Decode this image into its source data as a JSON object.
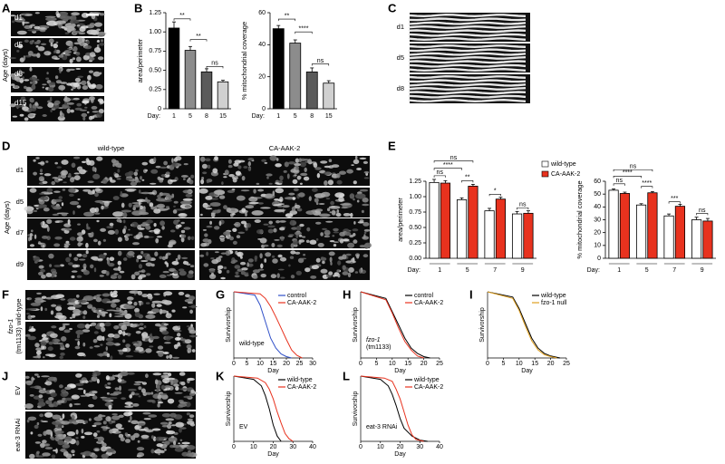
{
  "panel_labels": [
    "A",
    "B",
    "C",
    "D",
    "E",
    "F",
    "G",
    "H",
    "I",
    "J",
    "K",
    "L"
  ],
  "images": {
    "A": {
      "axis_label": "Age (days)",
      "rows": [
        "d1",
        "d5",
        "d8",
        "d15"
      ]
    },
    "C": {
      "rows": [
        "d1",
        "d5",
        "d8"
      ]
    },
    "D": {
      "axis_label": "Age (days)",
      "columns": [
        "wild-type",
        "CA-AAK-2"
      ],
      "rows": [
        "d1",
        "d5",
        "d7",
        "d9"
      ]
    },
    "F": {
      "side_labels": [
        "fzo-1",
        "(tm1133) wild-type"
      ]
    },
    "J": {
      "rows": [
        "EV",
        "eat-3 RNAi"
      ]
    }
  },
  "chart_data": [
    {
      "type": "bar",
      "y_label": "area/perimeter",
      "x_label": "Day:",
      "categories": [
        "1",
        "5",
        "8",
        "15"
      ],
      "values": [
        1.05,
        0.76,
        0.48,
        0.35
      ],
      "errors": [
        0.08,
        0.05,
        0.04,
        0.02
      ],
      "colors": [
        "#000000",
        "#8c8c8c",
        "#5a5a5a",
        "#d0d0d0"
      ],
      "ylim": [
        0,
        1.25
      ],
      "yticks": [
        0,
        0.25,
        {
          "value": 0.5,
          "label": "0.50"
        },
        0.75,
        {
          "value": 1,
          "label": "1.00"
        },
        1.25
      ],
      "annotations": [
        "**",
        "**",
        "ns"
      ]
    },
    {
      "type": "bar",
      "y_label": "% mitochondrial coverage",
      "x_label": "Day:",
      "categories": [
        "1",
        "5",
        "8",
        "15"
      ],
      "values": [
        50,
        41,
        23,
        16
      ],
      "errors": [
        2,
        2,
        2.5,
        1.5
      ],
      "colors": [
        "#000000",
        "#8c8c8c",
        "#5a5a5a",
        "#d0d0d0"
      ],
      "ylim": [
        0,
        60
      ],
      "yticks": [
        0,
        20,
        40,
        60
      ],
      "annotations": [
        "**",
        "****",
        "ns"
      ]
    },
    {
      "type": "bar",
      "y_label": "area/perimeter",
      "x_label": "Day:",
      "categories": [
        "1",
        "5",
        "7",
        "9"
      ],
      "series": [
        {
          "name": "wild-type",
          "color": "#ffffff",
          "values": [
            1.23,
            0.95,
            0.77,
            0.72
          ],
          "errors": [
            0.05,
            0.03,
            0.04,
            0.04
          ]
        },
        {
          "name": "CA-AAK-2",
          "color": "#e8321e",
          "values": [
            1.22,
            1.17,
            0.96,
            0.73
          ],
          "errors": [
            0.04,
            0.03,
            0.03,
            0.04
          ]
        }
      ],
      "ylim": [
        0,
        1.25
      ],
      "yticks": [
        {
          "value": 0,
          "label": "0.00"
        },
        0.25,
        {
          "value": 0.5,
          "label": "0.50"
        },
        0.75,
        {
          "value": 1,
          "label": "1.00"
        },
        1.25
      ],
      "annotations": [
        "ns",
        "****",
        "ns",
        "**",
        "*",
        "ns"
      ]
    },
    {
      "type": "bar",
      "y_label": "% mitochondrial coverage",
      "x_label": "Day:",
      "categories": [
        "1",
        "5",
        "7",
        "9"
      ],
      "series": [
        {
          "color": "#ffffff",
          "values": [
            53,
            41.5,
            33,
            30
          ],
          "errors": [
            1,
            1,
            1.5,
            2
          ]
        },
        {
          "color": "#e8321e",
          "values": [
            50.5,
            51,
            40.5,
            29
          ],
          "errors": [
            1,
            1,
            1.5,
            2
          ]
        }
      ],
      "ylim": [
        0,
        60
      ],
      "yticks": [
        0,
        10,
        20,
        30,
        40,
        50,
        60
      ],
      "annotations": [
        "ns",
        "****",
        "ns",
        "****",
        "***",
        "ns"
      ]
    },
    {
      "type": "line",
      "y_label": "Survivorship",
      "x_label": "Day",
      "annotations": [
        "wild-type"
      ],
      "series": [
        {
          "name": "control",
          "color": "#3050c8",
          "x": [
            0,
            8,
            10,
            12,
            14,
            16,
            18,
            20,
            22
          ],
          "values": [
            1,
            0.95,
            0.8,
            0.55,
            0.3,
            0.15,
            0.06,
            0.02,
            0
          ]
        },
        {
          "name": "CA-AAK-2",
          "color": "#e8321e",
          "x": [
            0,
            10,
            12,
            14,
            16,
            18,
            20,
            22,
            24,
            26
          ],
          "values": [
            1,
            0.97,
            0.9,
            0.78,
            0.62,
            0.45,
            0.28,
            0.12,
            0.04,
            0
          ]
        }
      ],
      "xlim": [
        0,
        30
      ],
      "xticks": [
        0,
        5,
        10,
        15,
        20,
        25,
        30
      ],
      "ylim": [
        0,
        1
      ]
    },
    {
      "type": "line",
      "y_label": "Survivorship",
      "x_label": "Day",
      "annotations": [
        "fzo-1",
        "(tm1133)"
      ],
      "series": [
        {
          "name": "control",
          "color": "#000000",
          "x": [
            0,
            8,
            10,
            12,
            14,
            16,
            18,
            20,
            22
          ],
          "values": [
            1,
            0.9,
            0.7,
            0.5,
            0.3,
            0.15,
            0.07,
            0.02,
            0
          ]
        },
        {
          "name": "CA-AAK-2",
          "color": "#e8321e",
          "x": [
            0,
            8,
            10,
            12,
            14,
            16,
            18,
            20
          ],
          "values": [
            1,
            0.88,
            0.68,
            0.45,
            0.25,
            0.12,
            0.03,
            0
          ]
        }
      ],
      "xlim": [
        0,
        25
      ],
      "xticks": [
        0,
        5,
        10,
        15,
        20,
        25
      ],
      "ylim": [
        0,
        1
      ]
    },
    {
      "type": "line",
      "y_label": "Survivorship",
      "x_label": "Day",
      "series": [
        {
          "name": "wild-type",
          "color": "#000000",
          "x": [
            0,
            8,
            10,
            12,
            14,
            16,
            18,
            20,
            23
          ],
          "values": [
            1,
            0.92,
            0.75,
            0.52,
            0.3,
            0.15,
            0.07,
            0.03,
            0
          ]
        },
        {
          "name": "fzo-1 null",
          "color": "#e0a020",
          "x": [
            0,
            8,
            10,
            12,
            14,
            16,
            18,
            20,
            22
          ],
          "values": [
            1,
            0.9,
            0.72,
            0.48,
            0.26,
            0.12,
            0.05,
            0.02,
            0
          ]
        }
      ],
      "xlim": [
        0,
        25
      ],
      "xticks": [
        0,
        5,
        10,
        15,
        20,
        25
      ],
      "ylim": [
        0,
        1
      ]
    },
    {
      "type": "line",
      "y_label": "Survivorship",
      "x_label": "Day",
      "annotations": [
        "EV"
      ],
      "series": [
        {
          "name": "wild-type",
          "color": "#000000",
          "x": [
            0,
            10,
            14,
            16,
            18,
            20,
            22,
            24
          ],
          "values": [
            1,
            0.95,
            0.85,
            0.7,
            0.5,
            0.25,
            0.08,
            0
          ]
        },
        {
          "name": "CA-AAK-2",
          "color": "#e8321e",
          "x": [
            0,
            12,
            16,
            18,
            20,
            22,
            24,
            26,
            28,
            30
          ],
          "values": [
            1,
            0.97,
            0.9,
            0.8,
            0.65,
            0.45,
            0.28,
            0.12,
            0.04,
            0
          ]
        }
      ],
      "xlim": [
        0,
        40
      ],
      "xticks": [
        0,
        10,
        20,
        30,
        40
      ],
      "ylim": [
        0,
        1
      ]
    },
    {
      "type": "line",
      "y_label": "Survivorship",
      "x_label": "Day",
      "annotations": [
        "eat-3 RNAi"
      ],
      "series": [
        {
          "name": "wild-type",
          "color": "#000000",
          "x": [
            0,
            10,
            14,
            16,
            18,
            20,
            22,
            26,
            30,
            34
          ],
          "values": [
            1,
            0.95,
            0.85,
            0.72,
            0.55,
            0.35,
            0.2,
            0.08,
            0.02,
            0
          ]
        },
        {
          "name": "CA-AAK-2",
          "color": "#e8321e",
          "x": [
            0,
            12,
            16,
            18,
            20,
            22,
            24,
            26,
            28,
            32
          ],
          "values": [
            1,
            0.97,
            0.92,
            0.8,
            0.65,
            0.45,
            0.25,
            0.1,
            0.03,
            0
          ]
        }
      ],
      "xlim": [
        0,
        40
      ],
      "xticks": [
        0,
        10,
        20,
        30,
        40
      ],
      "ylim": [
        0,
        1
      ]
    }
  ]
}
